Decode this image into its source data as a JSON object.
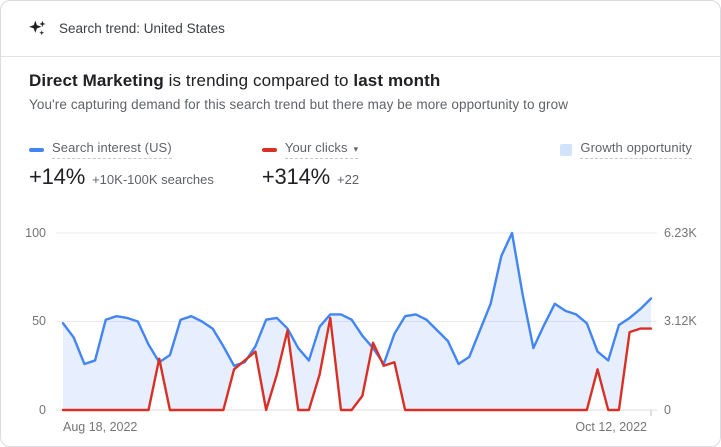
{
  "header": {
    "icon": "sparkle-icon",
    "label": "Search trend: United States"
  },
  "title": {
    "term": "Direct Marketing",
    "middle": " is trending compared to ",
    "period": "last month"
  },
  "subtitle": "You're capturing demand for this search trend but there may be more opportunity to grow",
  "legend": {
    "search_interest": {
      "label": "Search interest (US)",
      "value": "+14%",
      "detail": "+10K-100K searches",
      "color": "#4285f4"
    },
    "your_clicks": {
      "label": "Your clicks",
      "caret": "▾",
      "value": "+314%",
      "detail": "+22",
      "color": "#d93025"
    },
    "growth_opportunity": {
      "label": "Growth opportunity",
      "color": "#d2e3fc"
    }
  },
  "chart_data": {
    "type": "line",
    "x_start_label": "Aug 18, 2022",
    "x_end_label": "Oct 12, 2022",
    "x_note": "daily points, Aug 18 - Oct 12 2022",
    "left_axis": {
      "ticks": [
        "100",
        "50",
        "0"
      ],
      "range": [
        0,
        100
      ]
    },
    "right_axis": {
      "ticks": [
        "6.23K",
        "3.12K",
        "0"
      ],
      "range_note": "0 to 6.23K clicks maps to 0-100"
    },
    "grid": "horizontal gridlines at 0, 50, 100",
    "legend_position": "above chart",
    "series": [
      {
        "name": "Search interest (US)",
        "color": "#4285f4",
        "values": [
          49,
          41,
          26,
          28,
          51,
          53,
          52,
          50,
          37,
          27,
          31,
          51,
          53,
          50,
          46,
          36,
          25,
          27,
          36,
          51,
          52,
          46,
          35,
          28,
          47,
          54,
          54,
          51,
          42,
          35,
          26,
          43,
          53,
          54,
          51,
          45,
          39,
          26,
          30,
          45,
          60,
          87,
          100,
          65,
          35,
          48,
          60,
          56,
          54,
          49,
          33,
          28,
          48,
          52,
          57,
          63
        ]
      },
      {
        "name": "Your clicks",
        "color": "#d93025",
        "values": [
          0,
          0,
          0,
          0,
          0,
          0,
          0,
          0,
          0,
          29,
          0,
          0,
          0,
          0,
          0,
          0,
          23,
          28,
          33,
          0,
          20,
          45,
          0,
          0,
          20,
          52,
          0,
          0,
          8,
          38,
          25,
          27,
          0,
          0,
          0,
          0,
          0,
          0,
          0,
          0,
          0,
          0,
          0,
          0,
          0,
          0,
          0,
          0,
          0,
          0,
          23,
          0,
          0,
          44,
          46,
          46
        ]
      }
    ],
    "fill": {
      "name": "Growth opportunity",
      "rule": "area between clicks line and search interest line where search interest is higher",
      "color": "rgba(66,133,244,0.13)"
    }
  }
}
